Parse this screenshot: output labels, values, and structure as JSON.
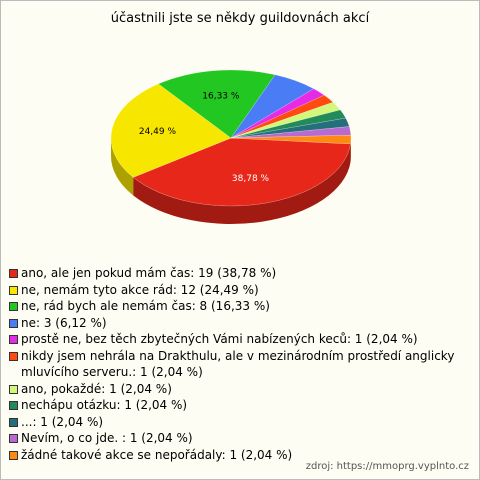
{
  "chart_data": {
    "type": "pie3d",
    "title": "účastnili jste se někdy guildovnách akcí",
    "categories": [
      "ano, ale jen pokud mám čas: 19 (38,78 %)",
      "ne, nemám tyto akce rád: 12 (24,49 %)",
      "ne, rád bych ale nemám čas: 8 (16,33 %)",
      "ne: 3 (6,12 %)",
      "prostě ne, bez těch zbytečných Vámi nabízených keců: 1 (2,04 %)",
      "nikdy jsem nehrála na Drakthulu, ale v mezinárodním prostředí anglicky mluvícího serveru.: 1 (2,04 %)",
      "ano, pokaždé: 1 (2,04 %)",
      "nechápu otázku: 1 (2,04 %)",
      "...: 1 (2,04 %)",
      "Nevím, o co jde. : 1 (2,04 %)",
      "žádné takové akce se nepořádaly: 1 (2,04 %)"
    ],
    "values": [
      38.78,
      24.49,
      16.33,
      6.12,
      2.04,
      2.04,
      2.04,
      2.04,
      2.04,
      2.04,
      2.04
    ],
    "value_labels": [
      "38,78 %",
      "24,49 %",
      "16,33 %",
      null,
      null,
      null,
      null,
      null,
      null,
      null,
      null
    ],
    "colors": [
      "#e8271b",
      "#f7e600",
      "#22c722",
      "#4a7cf5",
      "#e62be6",
      "#ff4a10",
      "#d2f77a",
      "#238a5a",
      "#23707a",
      "#b86ad0",
      "#ff8a12"
    ],
    "source": "zdroj: https://mmoprg.vyplnto.cz"
  }
}
